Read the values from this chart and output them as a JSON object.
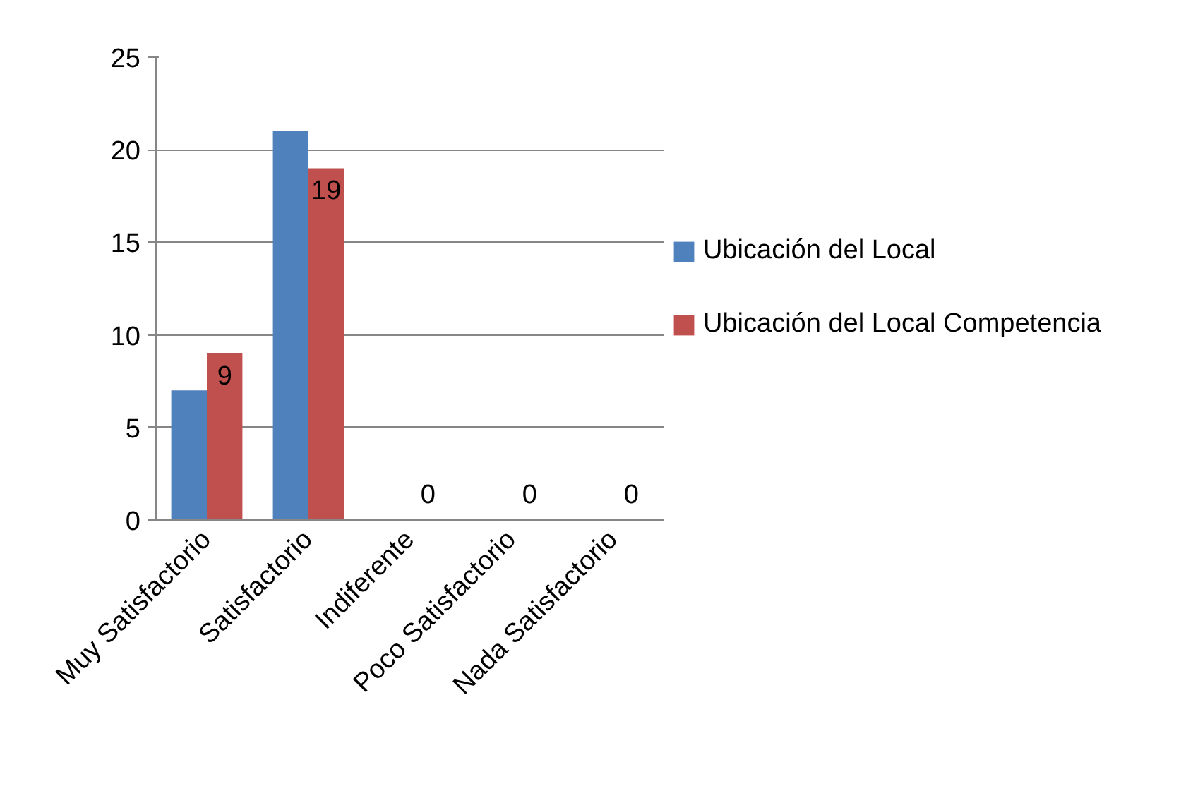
{
  "chart_data": {
    "type": "bar",
    "categories": [
      "Muy Satisfactorio",
      "Satisfactorio",
      "Indiferente",
      "Poco Satisfactorio",
      "Nada Satisfactorio"
    ],
    "series": [
      {
        "name": "Ubicación del Local",
        "color": "#4f81bd",
        "values": [
          7,
          21,
          0,
          0,
          0
        ]
      },
      {
        "name": "Ubicación del Local Competencia",
        "color": "#c0504d",
        "values": [
          9,
          19,
          0,
          0,
          0
        ],
        "value_labels": [
          "9",
          "19",
          "0",
          "0",
          "0"
        ]
      }
    ],
    "ylim": [
      0,
      25
    ],
    "yticks": [
      0,
      5,
      10,
      15,
      20,
      25
    ],
    "grid": "y",
    "legend": "right"
  }
}
